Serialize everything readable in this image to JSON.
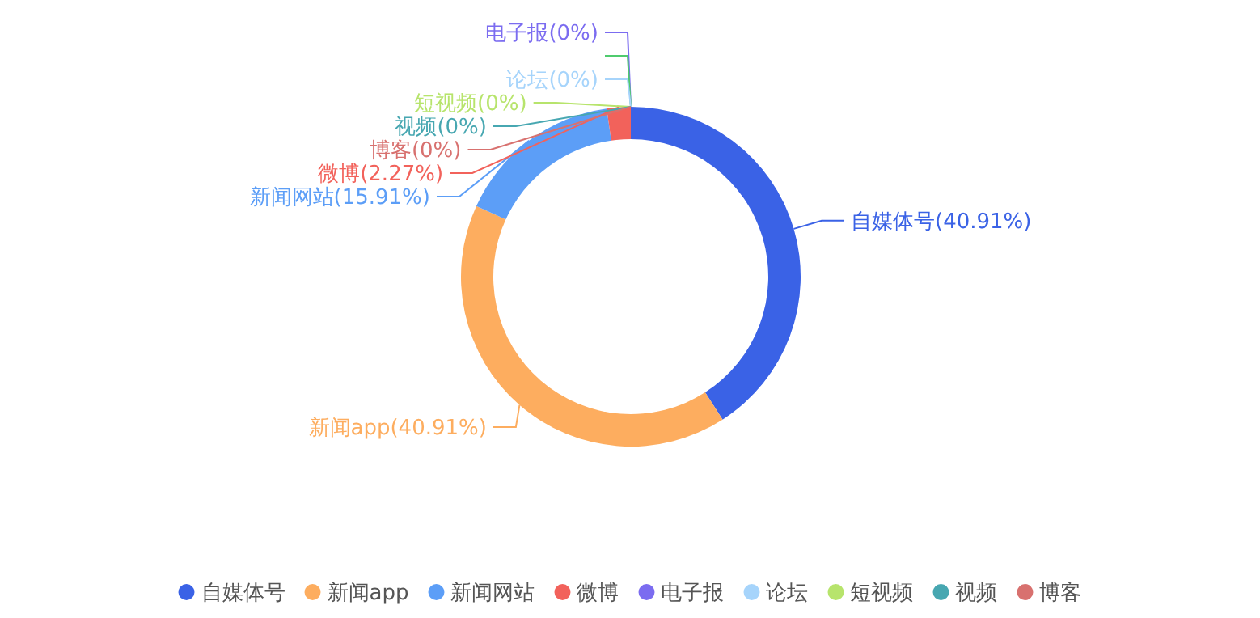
{
  "chart_data": {
    "type": "donut",
    "categories": [
      "自媒体号",
      "新闻app",
      "新闻网站",
      "微博",
      "电子报",
      null,
      "论坛",
      "短视频",
      "视频",
      "博客"
    ],
    "values": [
      40.91,
      40.91,
      15.91,
      2.27,
      0,
      0,
      0,
      0,
      0,
      0
    ],
    "colors": [
      "#3a62e6",
      "#fdad5f",
      "#5c9ef7",
      "#f2625b",
      "#7b6cf0",
      "#4fcb6e",
      "#a6d4fb",
      "#b7e46c",
      "#47a7b1",
      "#d8716f"
    ],
    "value_labels": [
      "(40.91%)",
      "(40.91%)",
      "(15.91%)",
      "(2.27%)",
      "(0%)",
      null,
      "(0%)",
      "(0%)",
      "(0%)",
      "(0%)"
    ],
    "legend": "bottom"
  }
}
